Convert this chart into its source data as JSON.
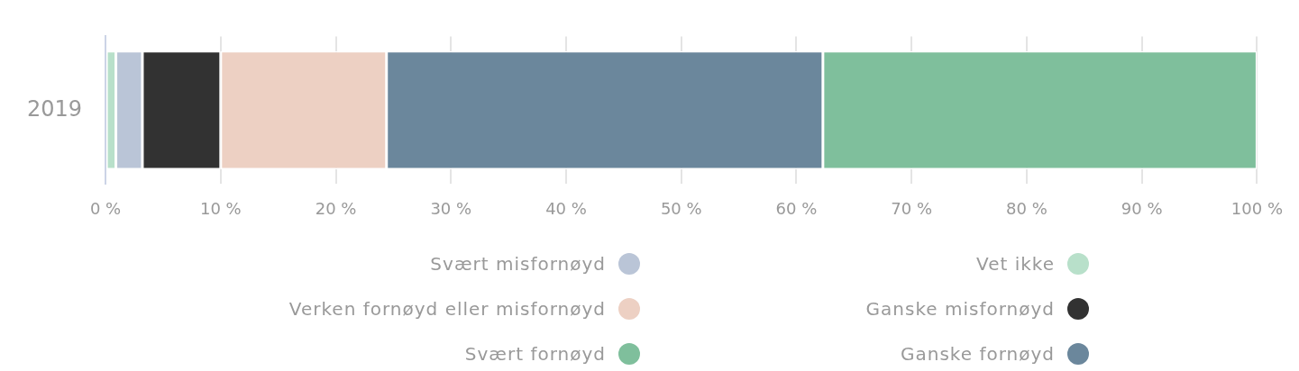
{
  "chart_data": {
    "type": "bar",
    "orientation": "horizontal",
    "stacked": true,
    "categories": [
      "2019"
    ],
    "series": [
      {
        "name": "Vet ikke",
        "color": "#b8e0ca",
        "values": [
          0.9
        ]
      },
      {
        "name": "Svært misfornøyd",
        "color": "#bac5d7",
        "values": [
          2.3
        ]
      },
      {
        "name": "Ganske misfornøyd",
        "color": "#323232",
        "values": [
          6.8
        ]
      },
      {
        "name": "Verken fornøyd eller misfornøyd",
        "color": "#edd0c3",
        "values": [
          14.4
        ]
      },
      {
        "name": "Ganske fornøyd",
        "color": "#6b879c",
        "values": [
          37.9
        ]
      },
      {
        "name": "Svært fornøyd",
        "color": "#7fbf9c",
        "values": [
          37.7
        ]
      }
    ],
    "xlim": [
      0,
      100
    ],
    "xticks": [
      {
        "value": 0,
        "label": "0 %"
      },
      {
        "value": 10,
        "label": "10 %"
      },
      {
        "value": 20,
        "label": "20 %"
      },
      {
        "value": 30,
        "label": "30 %"
      },
      {
        "value": 40,
        "label": "40 %"
      },
      {
        "value": 50,
        "label": "50 %"
      },
      {
        "value": 60,
        "label": "60 %"
      },
      {
        "value": 70,
        "label": "70 %"
      },
      {
        "value": 80,
        "label": "80 %"
      },
      {
        "value": 90,
        "label": "90 %"
      },
      {
        "value": 100,
        "label": "100 %"
      }
    ],
    "grid": "x",
    "legend": "bottom"
  }
}
